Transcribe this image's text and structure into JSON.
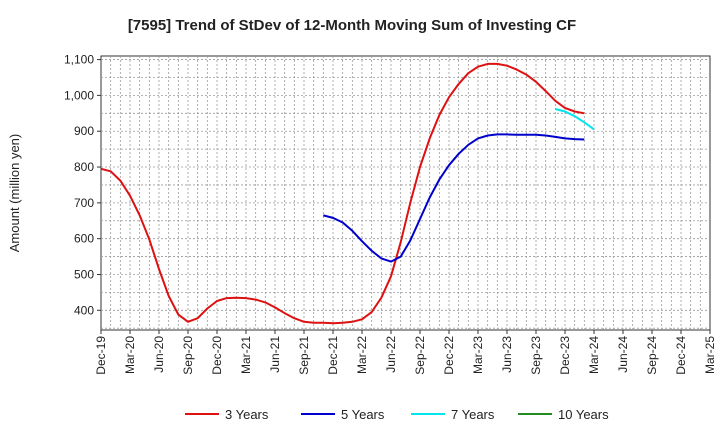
{
  "chart_data": {
    "type": "line",
    "title": "[7595]  Trend of StDev of 12-Month Moving Sum of Investing CF",
    "ylabel": "Amount (million yen)",
    "xlabel": "",
    "ylim": [
      345,
      1110
    ],
    "yticks": [
      400,
      500,
      600,
      700,
      800,
      900,
      1000,
      1100
    ],
    "ytick_labels": [
      "400",
      "500",
      "600",
      "700",
      "800",
      "900",
      "1,000",
      "1,100"
    ],
    "xtick_labels": [
      "Dec-19",
      "Mar-20",
      "Jun-20",
      "Sep-20",
      "Dec-20",
      "Mar-21",
      "Jun-21",
      "Sep-21",
      "Dec-21",
      "Mar-22",
      "Jun-22",
      "Sep-22",
      "Dec-22",
      "Mar-23",
      "Jun-23",
      "Sep-23",
      "Dec-23",
      "Mar-24",
      "Jun-24",
      "Sep-24",
      "Dec-24",
      "Mar-25"
    ],
    "grid": true,
    "legend_position": "bottom",
    "series": [
      {
        "name": "3 Years",
        "color": "#dd1111",
        "start": "Dec-19",
        "values": [
          795,
          788,
          762,
          720,
          665,
          598,
          515,
          440,
          388,
          368,
          378,
          405,
          426,
          434,
          435,
          434,
          430,
          422,
          408,
          392,
          378,
          368,
          365,
          365,
          364,
          365,
          368,
          375,
          395,
          435,
          495,
          590,
          700,
          800,
          880,
          945,
          995,
          1032,
          1062,
          1080,
          1088,
          1088,
          1083,
          1072,
          1058,
          1038,
          1012,
          985,
          965,
          955,
          950
        ]
      },
      {
        "name": "5 Years",
        "color": "#0000cc",
        "start": "Nov-21",
        "values": [
          665,
          658,
          645,
          622,
          593,
          566,
          545,
          536,
          550,
          595,
          655,
          715,
          765,
          805,
          837,
          862,
          880,
          888,
          891,
          891,
          890,
          890,
          890,
          888,
          884,
          880,
          878,
          877
        ]
      },
      {
        "name": "7 Years",
        "color": "#00e5ee",
        "start": "Nov-23",
        "values": [
          962,
          955,
          942,
          925,
          905
        ]
      },
      {
        "name": "10 Years",
        "color": "#228b22",
        "start": "Mar-24",
        "values": []
      }
    ]
  }
}
